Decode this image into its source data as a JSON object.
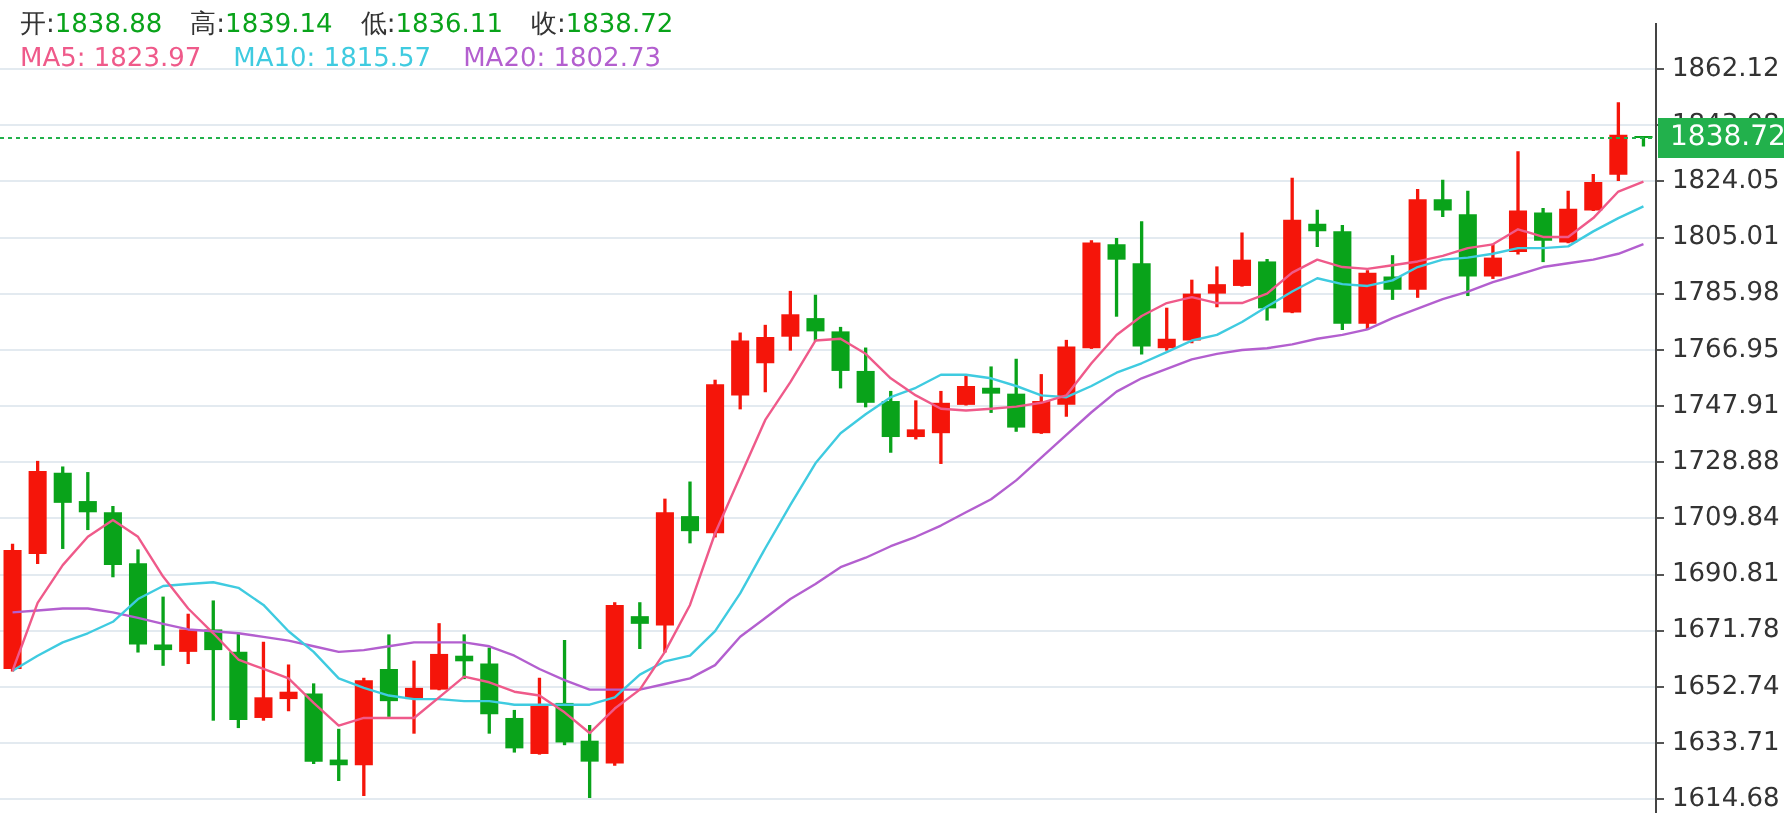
{
  "chart_data": {
    "type": "candlestick",
    "categories": [
      null,
      null,
      null,
      null,
      null,
      null,
      null,
      null,
      null,
      null,
      null,
      null,
      null,
      null,
      null,
      null,
      null,
      null,
      null,
      null,
      null,
      null,
      null,
      null,
      null,
      null,
      null,
      null,
      null,
      null,
      null,
      null,
      null,
      null,
      null,
      null,
      null,
      null,
      null,
      null,
      null,
      null,
      null,
      null,
      null,
      null,
      null,
      null,
      null,
      null,
      null,
      null,
      null,
      null,
      null,
      null,
      null,
      null,
      null,
      null,
      null,
      null,
      null,
      null,
      null,
      null
    ],
    "ohlc": [
      [
        1658.8,
        1701.0,
        1658.2,
        1699.1
      ],
      [
        1697.8,
        1729.1,
        1694.6,
        1725.9
      ],
      [
        1725.3,
        1727.2,
        1699.7,
        1715.1
      ],
      [
        1715.7,
        1725.3,
        1706.1,
        1711.9
      ],
      [
        1711.9,
        1713.8,
        1690.1,
        1694.0
      ],
      [
        1694.6,
        1699.1,
        1664.6,
        1667.1
      ],
      [
        1667.1,
        1683.1,
        1660.1,
        1665.2
      ],
      [
        1664.6,
        1677.3,
        1660.7,
        1672.2
      ],
      [
        1672.2,
        1681.8,
        1641.5,
        1665.2
      ],
      [
        1664.6,
        1670.9,
        1639.0,
        1641.5
      ],
      [
        1642.2,
        1667.8,
        1641.5,
        1649.2
      ],
      [
        1648.6,
        1660.1,
        1644.7,
        1651.1
      ],
      [
        1650.5,
        1653.7,
        1626.8,
        1627.4
      ],
      [
        1628.1,
        1638.3,
        1621.1,
        1626.2
      ],
      [
        1626.2,
        1655.6,
        1616.0,
        1655.0
      ],
      [
        1658.8,
        1670.3,
        1642.8,
        1647.9
      ],
      [
        1648.6,
        1661.4,
        1637.1,
        1652.4
      ],
      [
        1651.8,
        1674.1,
        1651.8,
        1663.9
      ],
      [
        1663.3,
        1670.3,
        1655.6,
        1661.4
      ],
      [
        1660.7,
        1665.8,
        1637.1,
        1643.5
      ],
      [
        1642.2,
        1644.7,
        1630.7,
        1631.9
      ],
      [
        1630.0,
        1655.6,
        1630.0,
        1646.6
      ],
      [
        1647.3,
        1668.4,
        1633.2,
        1633.9
      ],
      [
        1634.5,
        1639.6,
        1615.3,
        1627.4
      ],
      [
        1626.8,
        1681.2,
        1626.2,
        1680.5
      ],
      [
        1676.7,
        1681.2,
        1665.8,
        1674.1
      ],
      [
        1673.5,
        1716.3,
        1664.6,
        1711.9
      ],
      [
        1710.6,
        1722.1,
        1701.6,
        1705.5
      ],
      [
        1704.8,
        1756.6,
        1703.6,
        1755.3
      ],
      [
        1751.5,
        1772.6,
        1747.0,
        1770.1
      ],
      [
        1762.4,
        1775.2,
        1752.8,
        1771.3
      ],
      [
        1771.4,
        1786.7,
        1766.9,
        1779.0
      ],
      [
        1777.7,
        1785.4,
        1770.1,
        1773.2
      ],
      [
        1773.2,
        1774.5,
        1754.1,
        1759.8
      ],
      [
        1759.8,
        1767.5,
        1747.7,
        1749.0
      ],
      [
        1749.6,
        1752.8,
        1732.3,
        1737.4
      ],
      [
        1737.4,
        1749.6,
        1736.8,
        1740.0
      ],
      [
        1738.7,
        1752.8,
        1728.5,
        1749.0
      ],
      [
        1748.3,
        1757.9,
        1748.3,
        1754.7
      ],
      [
        1754.1,
        1761.1,
        1745.8,
        1752.1
      ],
      [
        1752.1,
        1763.7,
        1739.4,
        1740.6
      ],
      [
        1738.7,
        1758.5,
        1738.7,
        1749.6
      ],
      [
        1748.3,
        1770.1,
        1744.5,
        1768.1
      ],
      [
        1767.5,
        1803.9,
        1767.5,
        1803.3
      ],
      [
        1802.7,
        1804.6,
        1778.4,
        1797.5
      ],
      [
        1796.3,
        1810.3,
        1765.6,
        1768.1
      ],
      [
        1767.5,
        1781.0,
        1766.9,
        1770.7
      ],
      [
        1770.1,
        1790.5,
        1769.4,
        1786.0
      ],
      [
        1786.0,
        1795.0,
        1781.6,
        1789.2
      ],
      [
        1788.6,
        1806.5,
        1788.6,
        1797.5
      ],
      [
        1796.9,
        1797.5,
        1777.1,
        1781.0
      ],
      [
        1779.6,
        1825.0,
        1779.6,
        1811.0
      ],
      [
        1809.7,
        1814.2,
        1802.0,
        1807.1
      ],
      [
        1807.1,
        1809.0,
        1773.9,
        1775.8
      ],
      [
        1775.8,
        1793.7,
        1773.9,
        1793.1
      ],
      [
        1791.8,
        1798.8,
        1784.1,
        1787.3
      ],
      [
        1787.3,
        1821.2,
        1784.8,
        1818.0
      ],
      [
        1818.0,
        1824.4,
        1812.2,
        1814.2
      ],
      [
        1812.9,
        1820.6,
        1785.4,
        1791.8
      ],
      [
        1791.8,
        1802.7,
        1791.2,
        1798.2
      ],
      [
        1800.1,
        1834.0,
        1799.5,
        1814.2
      ],
      [
        1813.5,
        1814.8,
        1796.9,
        1803.9
      ],
      [
        1803.3,
        1820.6,
        1803.3,
        1814.8
      ],
      [
        1814.2,
        1826.3,
        1814.2,
        1823.8
      ],
      [
        1826.3,
        1850.6,
        1824.4,
        1839.8
      ],
      [
        1838.88,
        1839.14,
        1836.11,
        1838.72
      ]
    ],
    "colors": [
      "#f5150a",
      "#f5150a",
      "#09a31a",
      "#09a31a",
      "#09a31a",
      "#09a31a",
      "#09a31a",
      "#f5150a",
      "#09a31a",
      "#09a31a",
      "#f5150a",
      "#f5150a",
      "#09a31a",
      "#09a31a",
      "#f5150a",
      "#09a31a",
      "#f5150a",
      "#f5150a",
      "#09a31a",
      "#09a31a",
      "#09a31a",
      "#f5150a",
      "#09a31a",
      "#09a31a",
      "#f5150a",
      "#09a31a",
      "#f5150a",
      "#09a31a",
      "#f5150a",
      "#f5150a",
      "#f5150a",
      "#f5150a",
      "#09a31a",
      "#09a31a",
      "#09a31a",
      "#09a31a",
      "#f5150a",
      "#f5150a",
      "#f5150a",
      "#09a31a",
      "#09a31a",
      "#f5150a",
      "#f5150a",
      "#f5150a",
      "#09a31a",
      "#09a31a",
      "#f5150a",
      "#f5150a",
      "#f5150a",
      "#f5150a",
      "#09a31a",
      "#f5150a",
      "#09a31a",
      "#09a31a",
      "#f5150a",
      "#09a31a",
      "#f5150a",
      "#09a31a",
      "#09a31a",
      "#f5150a",
      "#f5150a",
      "#09a31a",
      "#f5150a",
      "#f5150a",
      "#f5150a",
      "#09a31a"
    ],
    "series": [
      {
        "name": "MA5: 1823.97",
        "type": "line",
        "color": "#ef5a8a",
        "values": [
          1658.2,
          1681.2,
          1694.0,
          1703.6,
          1709.3,
          1703.6,
          1690.1,
          1679.3,
          1670.9,
          1662.0,
          1658.8,
          1655.6,
          1647.3,
          1639.6,
          1642.2,
          1642.2,
          1642.2,
          1649.2,
          1656.2,
          1654.3,
          1651.1,
          1649.8,
          1644.1,
          1637.1,
          1645.4,
          1651.8,
          1664.6,
          1680.5,
          1704.8,
          1724.0,
          1743.2,
          1756.0,
          1770.1,
          1770.7,
          1765.6,
          1757.3,
          1751.5,
          1747.0,
          1746.4,
          1747.0,
          1747.7,
          1749.0,
          1751.5,
          1762.4,
          1772.0,
          1778.4,
          1782.8,
          1784.8,
          1782.8,
          1782.8,
          1786.0,
          1793.1,
          1797.5,
          1795.0,
          1794.4,
          1795.6,
          1796.9,
          1798.8,
          1801.4,
          1802.7,
          1807.8,
          1805.2,
          1805.2,
          1811.6,
          1820.6,
          1823.97
        ]
      },
      {
        "name": "MA10: 1815.57",
        "type": "line",
        "color": "#3fcbe0",
        "values": [
          1658.2,
          1663.3,
          1667.8,
          1670.9,
          1674.8,
          1682.5,
          1686.9,
          1687.6,
          1688.2,
          1686.3,
          1680.5,
          1671.6,
          1664.6,
          1655.6,
          1652.4,
          1649.8,
          1648.6,
          1648.6,
          1647.9,
          1647.9,
          1646.7,
          1646.7,
          1646.7,
          1646.7,
          1649.2,
          1656.9,
          1661.4,
          1663.3,
          1671.6,
          1684.4,
          1699.7,
          1714.4,
          1728.5,
          1738.7,
          1745.1,
          1750.9,
          1754.1,
          1758.5,
          1758.5,
          1757.3,
          1754.7,
          1751.5,
          1750.9,
          1754.7,
          1759.2,
          1762.4,
          1766.2,
          1770.1,
          1772.0,
          1776.4,
          1781.6,
          1786.7,
          1791.2,
          1789.2,
          1788.6,
          1790.5,
          1795.0,
          1797.5,
          1798.2,
          1799.5,
          1801.4,
          1801.4,
          1802.0,
          1807.1,
          1811.6,
          1815.57
        ]
      },
      {
        "name": "MA20: 1802.73",
        "type": "line",
        "color": "#b35fcf",
        "values": [
          1678.0,
          1678.6,
          1679.3,
          1679.3,
          1678.0,
          1676.1,
          1674.1,
          1672.2,
          1671.6,
          1670.9,
          1669.7,
          1668.4,
          1666.5,
          1664.6,
          1665.2,
          1666.5,
          1667.8,
          1667.8,
          1667.8,
          1666.5,
          1663.3,
          1658.8,
          1655.0,
          1651.8,
          1651.8,
          1651.8,
          1653.7,
          1655.6,
          1660.1,
          1669.7,
          1676.1,
          1682.5,
          1687.6,
          1693.3,
          1696.5,
          1700.4,
          1703.6,
          1707.4,
          1711.9,
          1716.3,
          1722.7,
          1730.4,
          1738.1,
          1745.8,
          1752.8,
          1757.3,
          1760.5,
          1763.7,
          1765.6,
          1766.9,
          1767.5,
          1768.8,
          1770.7,
          1772.0,
          1773.9,
          1777.7,
          1780.9,
          1784.1,
          1786.7,
          1789.9,
          1792.4,
          1795.0,
          1796.3,
          1797.5,
          1799.5,
          1802.73
        ]
      }
    ],
    "ylim": [
      1610.2,
      1877.5
    ],
    "yticks": [
      1614.68,
      1633.71,
      1652.74,
      1671.78,
      1690.81,
      1709.84,
      1728.88,
      1747.91,
      1766.95,
      1785.98,
      1805.01,
      1824.05,
      1843.08,
      1862.12
    ],
    "ref_lines": [
      {
        "axis": "y",
        "value": 1838.72,
        "label": "1838.72",
        "color": "#22b14c",
        "line_style": "dotted"
      }
    ],
    "annotations": [
      "开:1838.88",
      "高:1839.14",
      "低:1836.11",
      "收:1838.72"
    ],
    "grid": "y",
    "legend": "top left",
    "tick_labels": "y",
    "marker": "none",
    "line_style": "solid"
  }
}
